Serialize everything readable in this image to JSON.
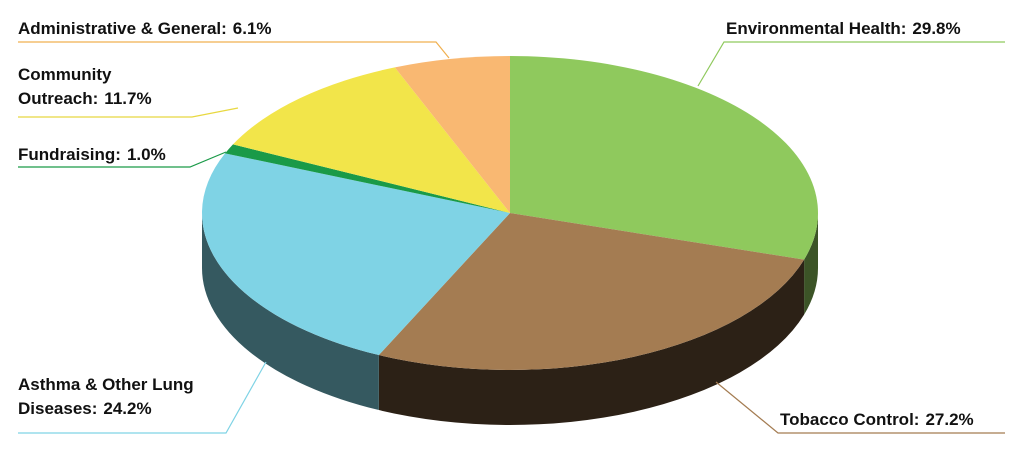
{
  "chart_data": {
    "type": "pie3d",
    "categories": [
      "Environmental Health:",
      "Tobacco Control:",
      "Asthma & Other Lung Diseases:",
      "Fundraising:",
      "Community Outreach:",
      "Administrative & General:"
    ],
    "values": [
      29.8,
      27.2,
      24.2,
      1.0,
      11.7,
      6.1
    ],
    "value_labels": [
      "29.8%",
      "27.2%",
      "24.2%",
      "1.0%",
      "11.7%",
      "6.1%"
    ],
    "colors": [
      "#8fc95d",
      "#a47c52",
      "#7fd3e5",
      "#1a9a48",
      "#f2e54a",
      "#f9b872"
    ]
  }
}
